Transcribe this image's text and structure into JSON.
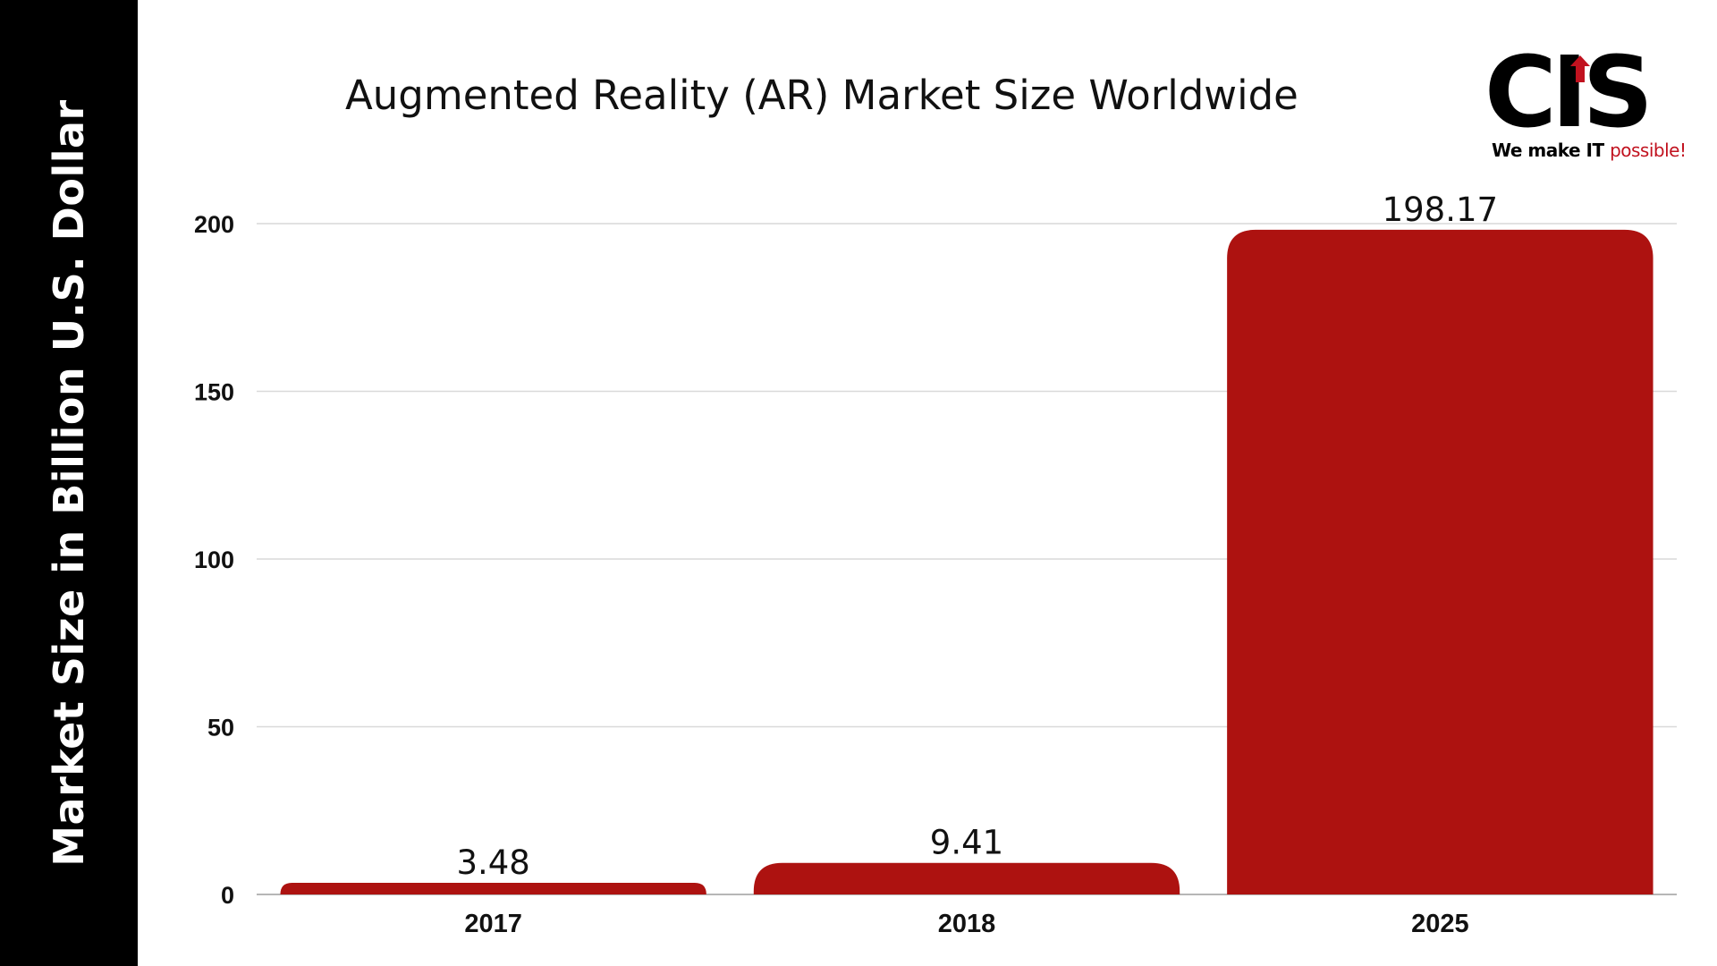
{
  "colors": {
    "bar": "#ad1210",
    "band": "#000000",
    "grid": "#d9d9d9",
    "axis": "#9e9e9e",
    "accent": "#c1121f"
  },
  "logo": {
    "letters": "CIS",
    "tagline_main": "We make IT ",
    "tagline_accent": "possible!"
  },
  "chart_data": {
    "type": "bar",
    "title": "Augmented Reality (AR) Market Size Worldwide",
    "ylabel": "Market Size in Billion U.S. Dollar",
    "xlabel": "",
    "categories": [
      "2017",
      "2018",
      "2025"
    ],
    "values": [
      3.48,
      9.41,
      198.17
    ],
    "data_labels": [
      "3.48",
      "9.41",
      "198.17"
    ],
    "ylim": [
      0,
      200
    ],
    "yticks": [
      0,
      50,
      100,
      150,
      200
    ],
    "ytick_labels": [
      "0",
      "50",
      "100",
      "150",
      "200"
    ],
    "grid": true,
    "legend": "none"
  }
}
